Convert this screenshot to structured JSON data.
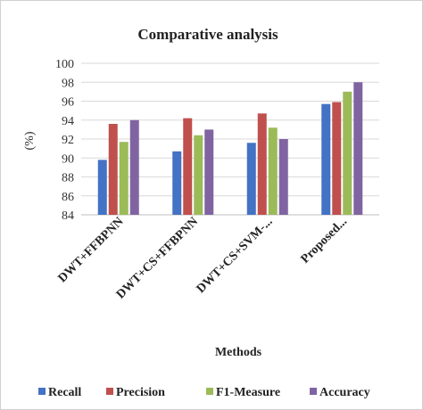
{
  "chart_data": {
    "type": "bar",
    "title": "Comparative analysis",
    "ylabel": "(%)",
    "xlabel": "Methods",
    "ylim": [
      84,
      100
    ],
    "yticks": [
      84,
      86,
      88,
      90,
      92,
      94,
      96,
      98,
      100
    ],
    "categories": [
      "DWT+FFBPNN",
      "DWT+CS+FFBPNN",
      "DWT+CS+SVM-...",
      "Proposed..."
    ],
    "series": [
      {
        "name": "Recall",
        "color": "#4472C4",
        "values": [
          89.8,
          90.7,
          91.6,
          95.7
        ]
      },
      {
        "name": "Precision",
        "color": "#C0504D",
        "values": [
          93.6,
          94.2,
          94.7,
          95.9
        ]
      },
      {
        "name": "F1-Measure",
        "color": "#9BBB59",
        "values": [
          91.7,
          92.4,
          93.2,
          97.0
        ]
      },
      {
        "name": "Accuracy",
        "color": "#8064A2",
        "values": [
          94.0,
          93.0,
          92.0,
          98.0
        ]
      }
    ],
    "grid": true,
    "legend_position": "bottom"
  }
}
